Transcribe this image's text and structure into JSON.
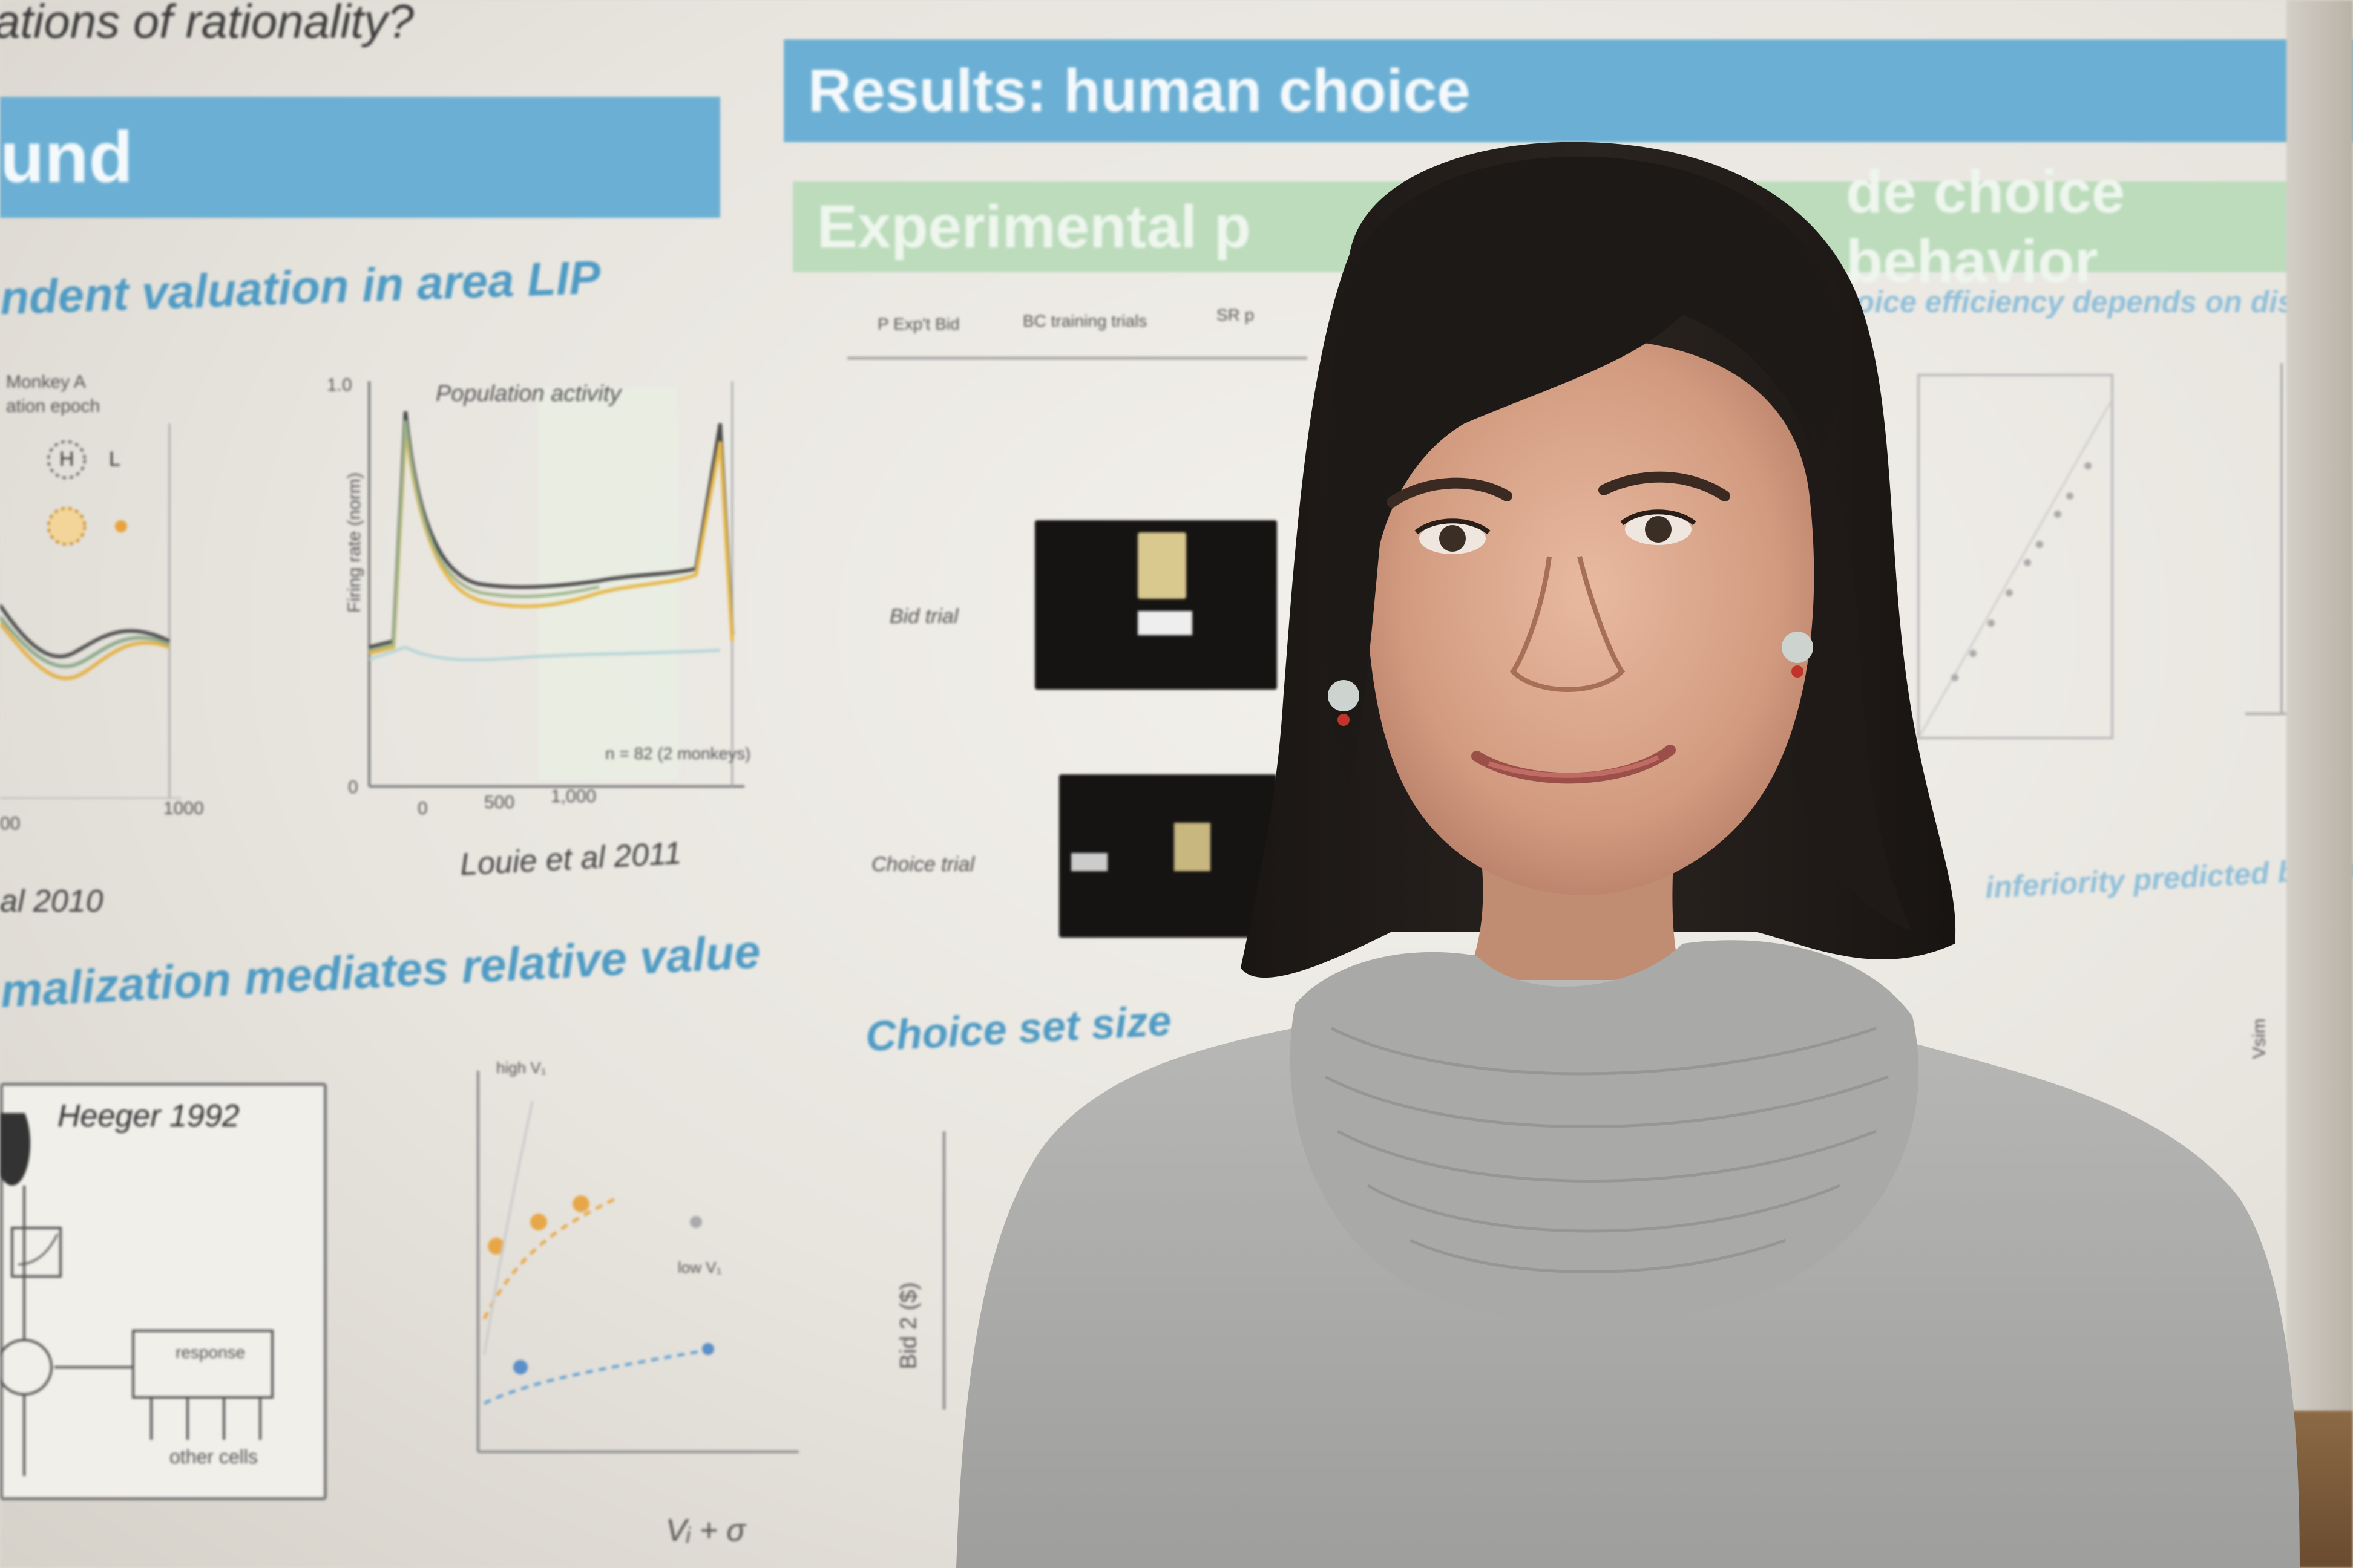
{
  "poster": {
    "question_text": "ations of rationality?",
    "banner_left": "und",
    "banner_results": "Results: human choice",
    "banner_green": "Experimental p",
    "banner_green_right": "de choice behavior",
    "heading_lip": "ndent valuation in area LIP",
    "heading_norm": "malization mediates relative value",
    "heading_choice_set": "Choice set size",
    "caption_louie": "Louie et al 2011",
    "caption_2010": "al 2010",
    "caption_heeger": "Heeger 1992",
    "plot_title_population": "Population activity",
    "plot_ylabel_firing": "Firing rate (norm)",
    "monkey_label": "Monkey A",
    "epoch_label": "ation epoch",
    "tick_1000": "1000",
    "tick_00": "00",
    "tick_0": "0",
    "tick_500": "500",
    "tick_1000b": "1,000",
    "tick_10": "1.0",
    "tick_0b": "0",
    "n_label": "n = 82 (2 monkeys)",
    "bid_trial": "Bid trial",
    "choice_trial": "Choice trial",
    "bid_axis": "Bid 2 ($)",
    "other_cells": "other cells",
    "response_label": "response",
    "formula": "Vᵢ + σ",
    "tab_a": "P Exp't Bid",
    "tab_b": "BC training trials",
    "tab_c": "SR p",
    "heading_right": "Choice efficiency depends on dista",
    "heading_right2": "inferiority predicted by norma",
    "legend_label": "Vsim",
    "label_tl_h": "H",
    "label_tl_l": "L",
    "label_high": "high V₁",
    "label_low": "low V₁"
  }
}
